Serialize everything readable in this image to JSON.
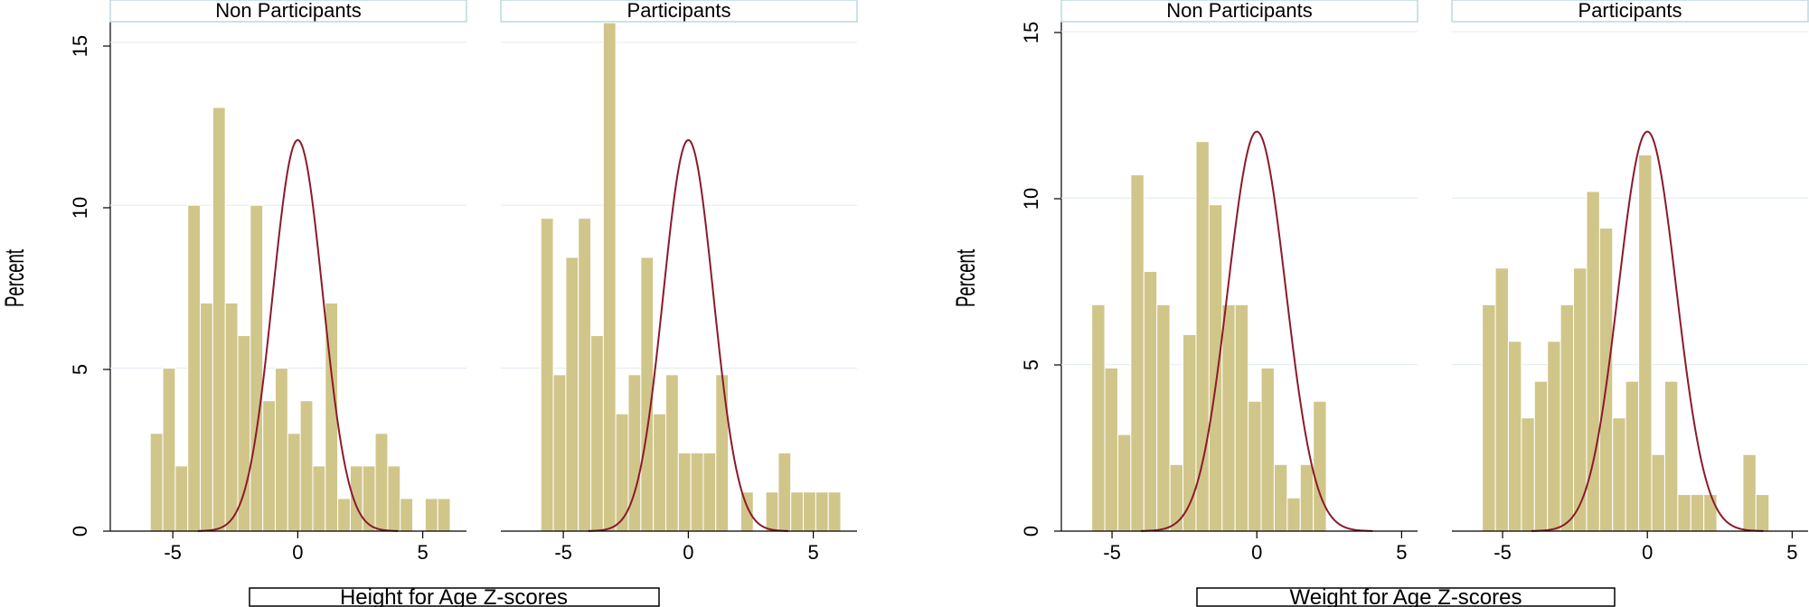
{
  "colors": {
    "bar_fill": "#d1c68a",
    "bar_stroke": "#ffffff",
    "curve": "#8b1a2b",
    "grid": "#e6eef2",
    "strip_border": "#bcd8df",
    "axis": "#000000"
  },
  "figures": [
    {
      "ylabel": "Percent",
      "xlabel": "Height for Age Z-scores",
      "yticks": [
        0,
        5,
        10,
        15
      ],
      "xticks": [
        -5,
        0,
        5
      ]
    },
    {
      "ylabel": "Percent",
      "xlabel": "Weight for Age Z-scores",
      "yticks": [
        0,
        5,
        10,
        15
      ],
      "xticks": [
        -5,
        0,
        5
      ]
    }
  ],
  "chart_data": [
    {
      "type": "bar",
      "title": "Non Participants",
      "xlabel": "Height for Age Z-scores",
      "ylabel": "Percent",
      "xlim": [
        -7.5,
        6.75
      ],
      "ylim": [
        0,
        15.3
      ],
      "grid": true,
      "bin_start": -5.9,
      "bin_width": 0.5,
      "values": [
        3,
        5,
        2,
        10,
        7,
        13,
        7,
        6,
        10,
        4,
        5,
        3,
        4,
        2,
        7,
        1,
        2,
        2,
        3,
        2,
        1,
        0,
        1,
        1
      ],
      "normal_curve": {
        "mean": 0,
        "sd": 1,
        "peak": 12
      }
    },
    {
      "type": "bar",
      "title": "Participants",
      "xlabel": "Height for Age Z-scores",
      "ylabel": "Percent",
      "xlim": [
        -7.5,
        6.75
      ],
      "ylim": [
        0,
        15.3
      ],
      "grid": true,
      "bin_start": -5.9,
      "bin_width": 0.5,
      "values": [
        9.6,
        4.8,
        8.4,
        9.6,
        6,
        15.6,
        3.6,
        4.8,
        8.4,
        3.6,
        4.8,
        2.4,
        2.4,
        2.4,
        4.8,
        0,
        1.2,
        0,
        1.2,
        2.4,
        1.2,
        1.2,
        1.2,
        1.2
      ],
      "normal_curve": {
        "mean": 0,
        "sd": 1,
        "peak": 12
      }
    },
    {
      "type": "bar",
      "title": "Non Participants",
      "xlabel": "Weight for Age Z-scores",
      "ylabel": "Percent",
      "xlim": [
        -6.75,
        5.55
      ],
      "ylim": [
        0,
        15.3
      ],
      "grid": true,
      "bin_start": -5.7,
      "bin_width": 0.45,
      "values": [
        6.8,
        4.9,
        2.9,
        10.7,
        7.8,
        6.8,
        2,
        5.9,
        11.7,
        9.8,
        6.8,
        6.8,
        3.9,
        4.9,
        2,
        1,
        2,
        3.9
      ],
      "normal_curve": {
        "mean": 0,
        "sd": 1,
        "peak": 12
      }
    },
    {
      "type": "bar",
      "title": "Participants",
      "xlabel": "Weight for Age Z-scores",
      "ylabel": "Percent",
      "xlim": [
        -6.75,
        5.55
      ],
      "ylim": [
        0,
        15.3
      ],
      "grid": true,
      "bin_start": -5.7,
      "bin_width": 0.45,
      "values": [
        6.8,
        7.9,
        5.7,
        3.4,
        4.5,
        5.7,
        6.8,
        7.9,
        10.2,
        9.1,
        3.4,
        4.5,
        11.3,
        2.3,
        4.5,
        1.1,
        1.1,
        1.1,
        0,
        0,
        2.3,
        1.1
      ],
      "normal_curve": {
        "mean": 0,
        "sd": 1,
        "peak": 12
      }
    }
  ]
}
